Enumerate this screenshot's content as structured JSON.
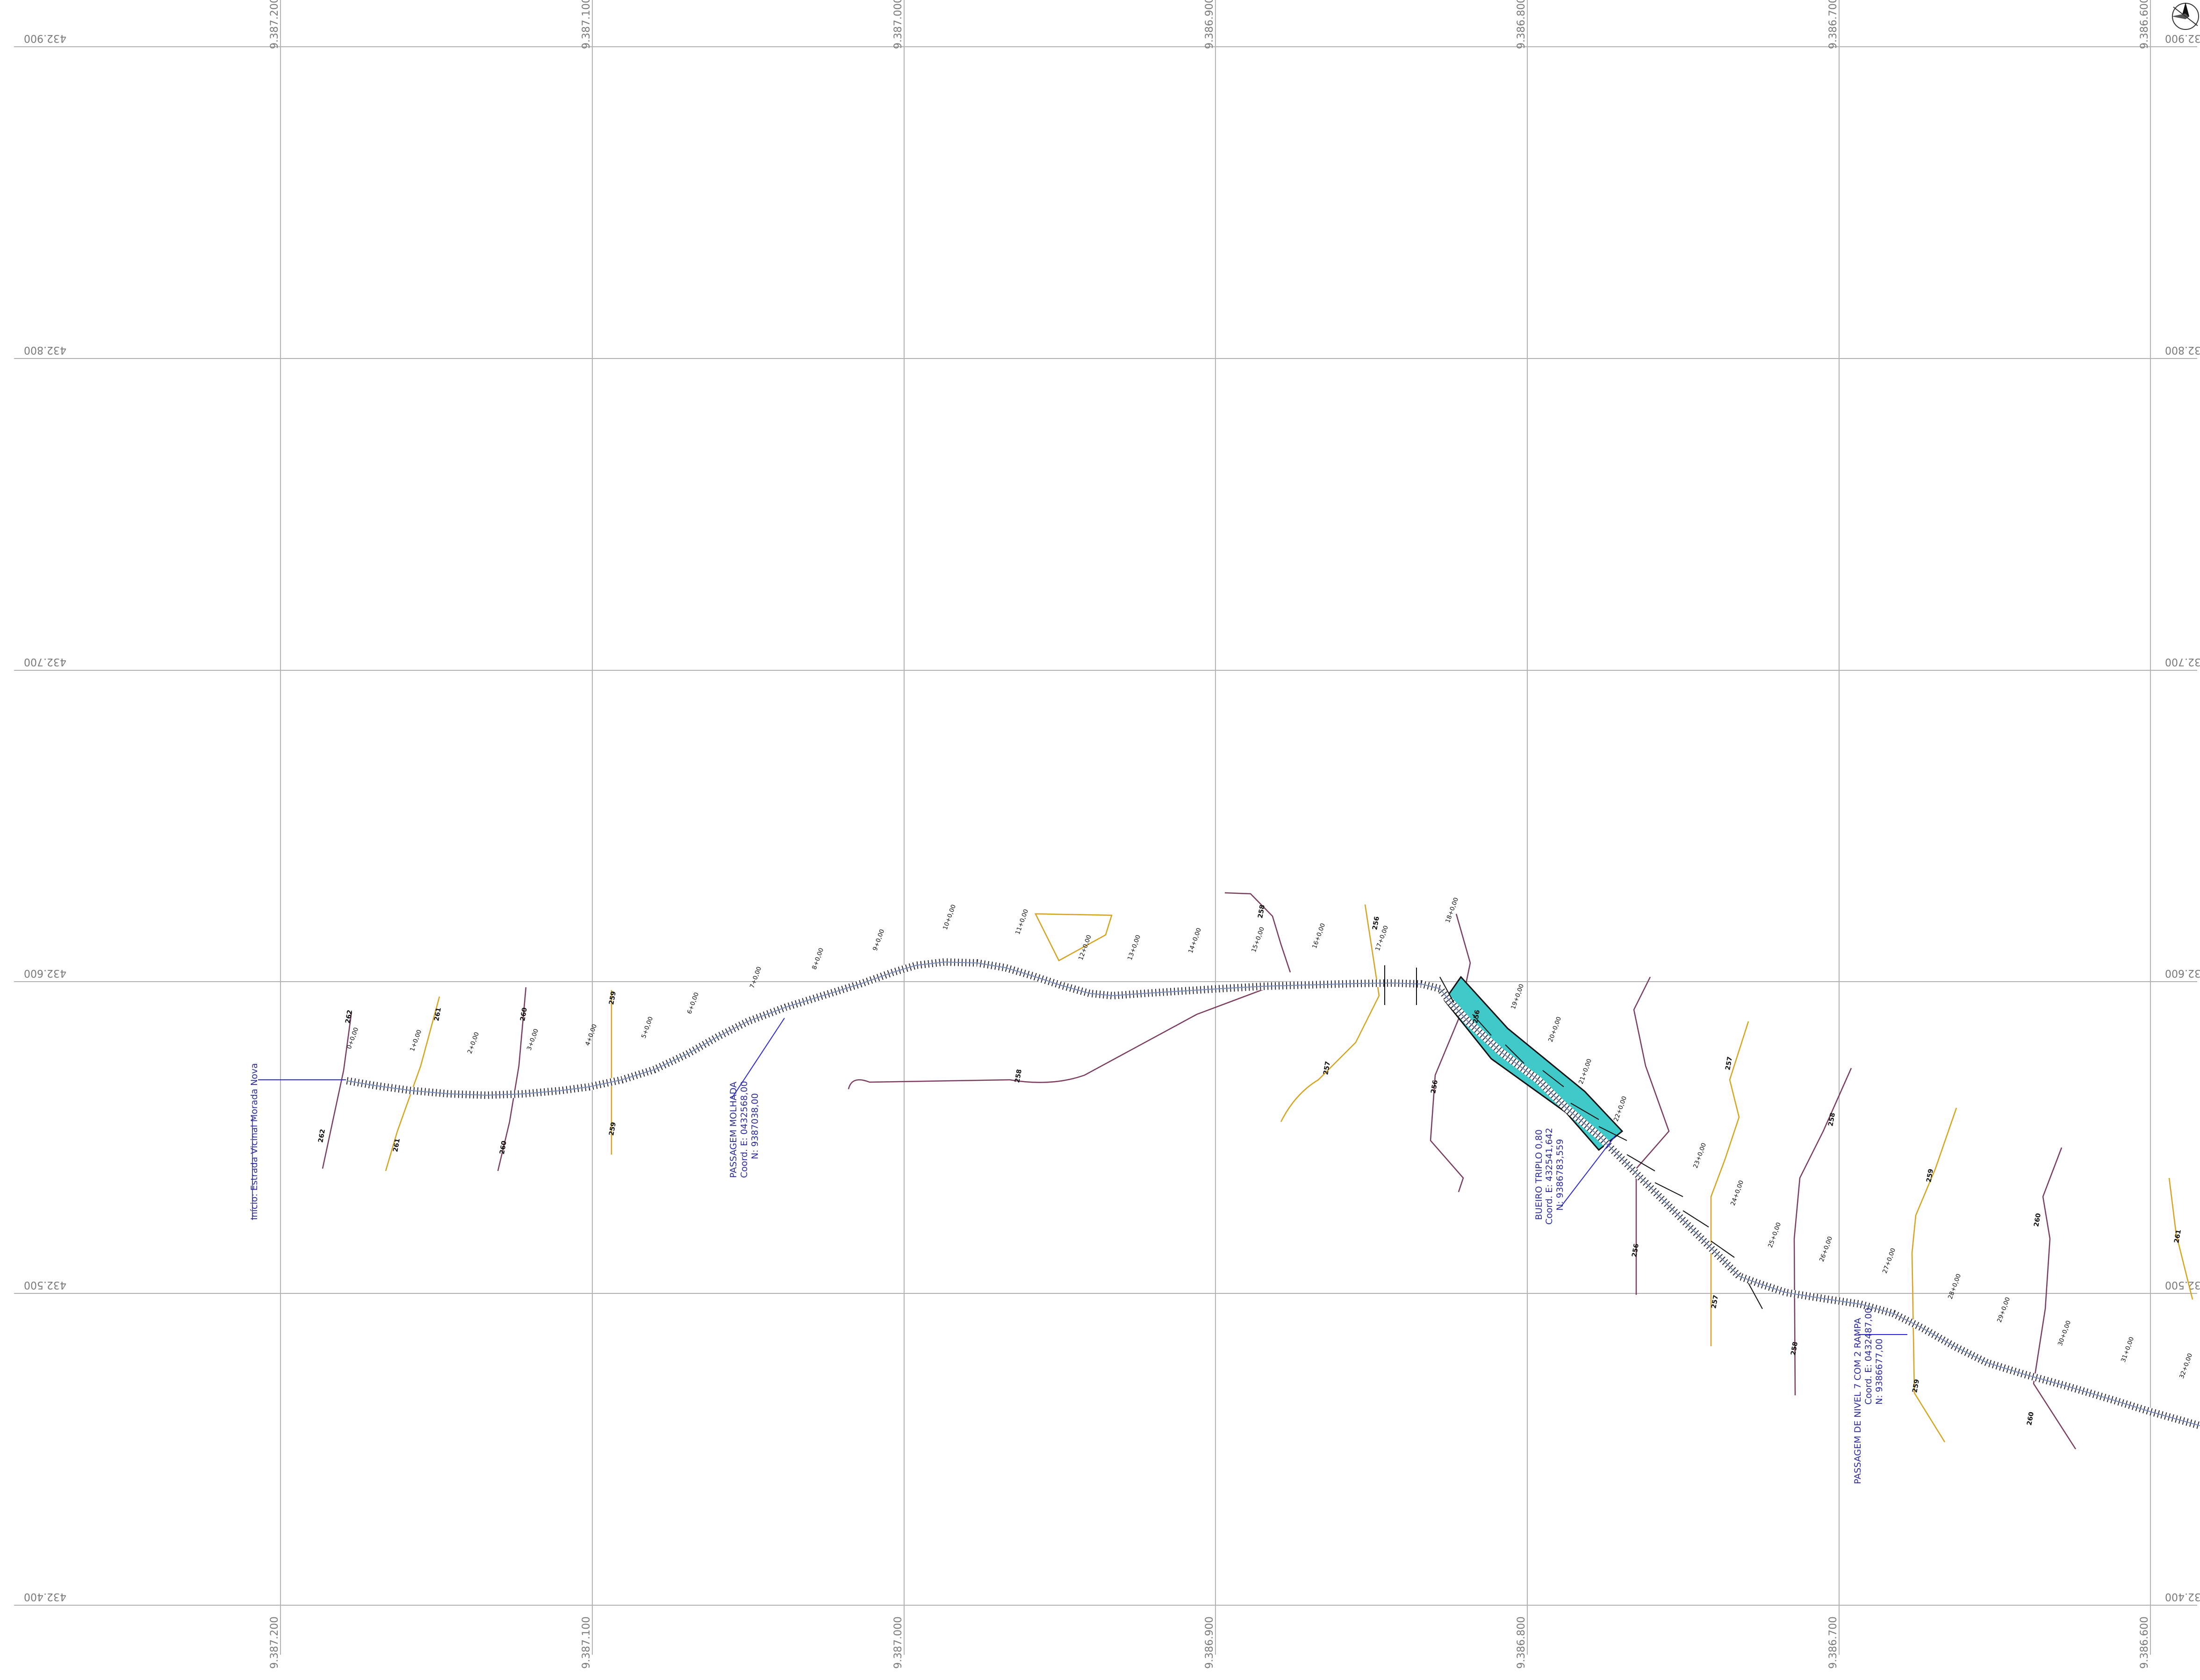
{
  "map": {
    "grid": {
      "easting_labels": [
        "9.387.200",
        "9.387.100",
        "9.387.000",
        "9.386.900",
        "9.386.800",
        "9.386.700",
        "9.386.600"
      ],
      "northing_labels": [
        "432.900",
        "432.800",
        "432.700",
        "432.600",
        "432.500",
        "432.400"
      ]
    },
    "stations": [
      "0+0,00",
      "1+0,00",
      "2+0,00",
      "3+0,00",
      "4+0,00",
      "5+0,00",
      "6+0,00",
      "7+0,00",
      "8+0,00",
      "9+0,00",
      "10+0,00",
      "11+0,00",
      "12+0,00",
      "13+0,00",
      "14+0,00",
      "15+0,00",
      "16+0,00",
      "17+0,00",
      "18+0,00",
      "19+0,00",
      "20+0,00",
      "21+0,00",
      "22+0,00",
      "23+0,00",
      "24+0,00",
      "25+0,00",
      "26+0,00",
      "27+0,00",
      "28+0,00",
      "29+0,00",
      "30+0,00",
      "31+0,00",
      "32+0,00"
    ],
    "contour_labels": [
      "262",
      "261",
      "260",
      "259",
      "259",
      "261",
      "260",
      "262",
      "258",
      "258",
      "257",
      "256",
      "256",
      "256",
      "258",
      "257",
      "257",
      "256",
      "258",
      "259",
      "260",
      "259",
      "260",
      "261"
    ],
    "annotations": {
      "start": "Início: Estrada Vicinal Morada Nova",
      "passagem_molhada": {
        "title": "PASSAGEM MOLHADA",
        "coord_e": "Coord.  E: 0432568,00",
        "coord_n": "N:  9387038,00"
      },
      "bueiro": {
        "title": "BUEIRO TRIPLO 0,80",
        "coord_e": "Coord.  E: 432541,642",
        "coord_n": "N:  9386783,559"
      },
      "passagem_nivel": {
        "title": "PASSAGEM DE NIVEL 7 COM 2 RAMPA",
        "coord_e": "Coord.  E: 0432487,00",
        "coord_n": "N:  9386677,00"
      }
    },
    "colors": {
      "road_edge": "#111111",
      "centerline": "#7a8db8",
      "contour_purple": "#7b3b5e",
      "contour_orange": "#d8a21c",
      "culvert_fill": "#3fc9c9",
      "annotation_blue": "#2b2b9e",
      "grid": "#b3b3b3"
    },
    "icons": [
      "north-arrow-icon"
    ]
  }
}
